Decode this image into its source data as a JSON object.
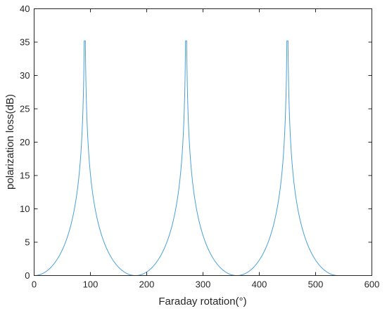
{
  "chart_data": {
    "type": "line",
    "title": "",
    "xlabel": "Faraday rotation(°)",
    "ylabel": "polarization loss(dB)",
    "xlim": [
      0,
      600
    ],
    "ylim": [
      0,
      40
    ],
    "xticks": [
      0,
      100,
      200,
      300,
      400,
      500,
      600
    ],
    "yticks": [
      0,
      5,
      10,
      15,
      20,
      25,
      30,
      35,
      40
    ],
    "grid": false,
    "legend": "none",
    "series": [
      {
        "color": "#4a9fd8",
        "function": "polarization loss = -20*log10(|cos(Faraday rotation)|), capped at peak",
        "x_range": [
          0,
          540
        ],
        "peak_value": 35.2,
        "peaks_at": [
          90,
          270,
          450
        ],
        "zeros_at": [
          0,
          180,
          360,
          540
        ]
      }
    ]
  }
}
